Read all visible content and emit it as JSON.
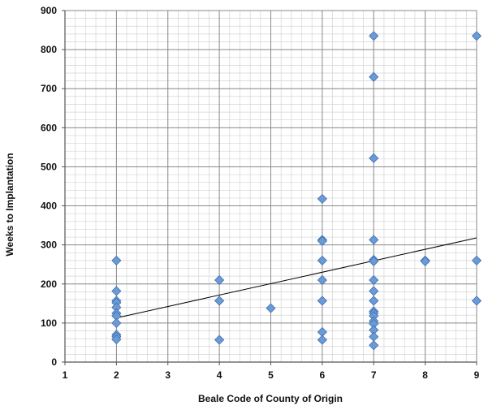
{
  "chart_data": {
    "type": "scatter",
    "xlabel": "Beale Code of County of Origin",
    "ylabel": "Weeks to Implantation",
    "xlim": [
      1,
      9
    ],
    "ylim": [
      0,
      900
    ],
    "x_ticks": [
      1,
      2,
      3,
      4,
      5,
      6,
      7,
      8,
      9
    ],
    "y_ticks": [
      0,
      100,
      200,
      300,
      400,
      500,
      600,
      700,
      800,
      900
    ],
    "grid": true,
    "minor_grid": true,
    "legend": "none",
    "marker": "diamond",
    "marker_color": "#6b9bd6",
    "trendline": {
      "type": "linear",
      "x": [
        2,
        9
      ],
      "y": [
        113,
        318
      ],
      "color": "#000000"
    },
    "points": [
      {
        "x": 2,
        "y": 260
      },
      {
        "x": 2,
        "y": 182
      },
      {
        "x": 2,
        "y": 157
      },
      {
        "x": 2,
        "y": 152
      },
      {
        "x": 2,
        "y": 140
      },
      {
        "x": 2,
        "y": 125
      },
      {
        "x": 2,
        "y": 118
      },
      {
        "x": 2,
        "y": 100
      },
      {
        "x": 2,
        "y": 70
      },
      {
        "x": 2,
        "y": 65
      },
      {
        "x": 2,
        "y": 58
      },
      {
        "x": 4,
        "y": 210
      },
      {
        "x": 4,
        "y": 157
      },
      {
        "x": 4,
        "y": 57
      },
      {
        "x": 5,
        "y": 138
      },
      {
        "x": 6,
        "y": 418
      },
      {
        "x": 6,
        "y": 313
      },
      {
        "x": 6,
        "y": 310
      },
      {
        "x": 6,
        "y": 260
      },
      {
        "x": 6,
        "y": 210
      },
      {
        "x": 6,
        "y": 157
      },
      {
        "x": 6,
        "y": 77
      },
      {
        "x": 6,
        "y": 57
      },
      {
        "x": 7,
        "y": 835
      },
      {
        "x": 7,
        "y": 730
      },
      {
        "x": 7,
        "y": 522
      },
      {
        "x": 7,
        "y": 313
      },
      {
        "x": 7,
        "y": 262
      },
      {
        "x": 7,
        "y": 258
      },
      {
        "x": 7,
        "y": 210
      },
      {
        "x": 7,
        "y": 182
      },
      {
        "x": 7,
        "y": 157
      },
      {
        "x": 7,
        "y": 130
      },
      {
        "x": 7,
        "y": 125
      },
      {
        "x": 7,
        "y": 118
      },
      {
        "x": 7,
        "y": 105
      },
      {
        "x": 7,
        "y": 98
      },
      {
        "x": 7,
        "y": 82
      },
      {
        "x": 7,
        "y": 65
      },
      {
        "x": 7,
        "y": 43
      },
      {
        "x": 8,
        "y": 260
      },
      {
        "x": 8,
        "y": 258
      },
      {
        "x": 9,
        "y": 835
      },
      {
        "x": 9,
        "y": 260
      },
      {
        "x": 9,
        "y": 157
      }
    ]
  }
}
